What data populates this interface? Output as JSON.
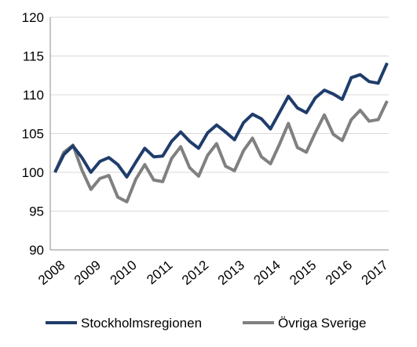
{
  "chart_data": {
    "type": "line",
    "title": "",
    "xlabel": "",
    "ylabel": "",
    "ylim": [
      90,
      120
    ],
    "yticks": [
      90,
      95,
      100,
      105,
      110,
      115,
      120
    ],
    "xtick_labels": [
      "2008",
      "2009",
      "2010",
      "2011",
      "2012",
      "2013",
      "2014",
      "2015",
      "2016",
      "2017"
    ],
    "grid": "horizontal",
    "legend_position": "bottom",
    "points_per_year": 4,
    "series": [
      {
        "name": "Stockholmsregionen",
        "color": "#1F3D6B",
        "values": [
          100,
          102.3,
          103.4,
          101.9,
          100.0,
          101.4,
          101.9,
          101.0,
          99.4,
          101.3,
          103.1,
          102.0,
          102.1,
          104.0,
          105.2,
          104.0,
          103.1,
          105.1,
          106.1,
          105.2,
          104.2,
          106.4,
          107.5,
          106.9,
          105.6,
          107.7,
          109.8,
          108.3,
          107.7,
          109.6,
          110.6,
          110.1,
          109.4,
          112.2,
          112.6,
          111.7,
          111.5,
          114.1
        ]
      },
      {
        "name": "Övriga Sverige",
        "color": "#808080",
        "values": [
          100,
          102.6,
          103.5,
          100.3,
          97.8,
          99.2,
          99.6,
          96.8,
          96.2,
          99.1,
          101.0,
          99.0,
          98.8,
          101.8,
          103.3,
          100.6,
          99.5,
          102.2,
          103.7,
          100.8,
          100.2,
          102.8,
          104.4,
          102.0,
          101.1,
          103.6,
          106.3,
          103.2,
          102.6,
          105.1,
          107.4,
          104.9,
          104.1,
          106.8,
          108.0,
          106.6,
          106.8,
          109.2
        ]
      }
    ]
  }
}
